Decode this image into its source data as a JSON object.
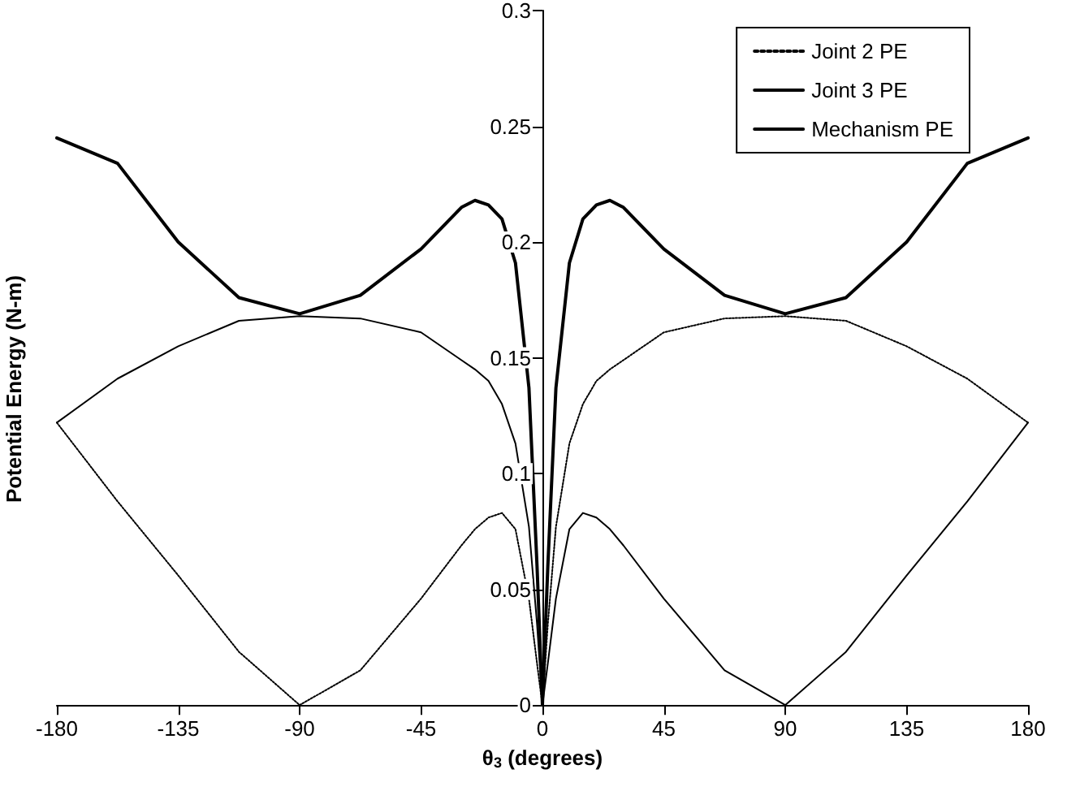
{
  "chart_data": {
    "type": "line",
    "xlabel": "θ$_{3}$ (degrees)",
    "ylabel": "Potential Energy (N-m)",
    "xlim": [
      -180,
      180
    ],
    "xticks": [
      -180,
      -135,
      -90,
      -45,
      0,
      45,
      90,
      135,
      180
    ],
    "ylim": [
      0,
      0.3
    ],
    "yticks": [
      0,
      0.05,
      0.1,
      0.15,
      0.2,
      0.25,
      0.3
    ],
    "grid": false,
    "legend": "top right",
    "marker": "none",
    "series": [
      {
        "name": "Joint 2 PE",
        "color": "#000000",
        "line_style": "dotted",
        "x": [
          -180,
          -157.5,
          -135,
          -112.5,
          -90,
          -67.5,
          -45,
          -30,
          -25,
          -20,
          -15,
          -10,
          -5,
          -2,
          0,
          2,
          5,
          10,
          15,
          20,
          25,
          30,
          45,
          67.5,
          90,
          112.5,
          135,
          157.5,
          180
        ],
        "values": [
          0.122,
          0.088,
          0.056,
          0.023,
          0,
          0.015,
          0.046,
          0.069,
          0.076,
          0.081,
          0.083,
          0.076,
          0.046,
          0.018,
          0,
          0.035,
          0.077,
          0.113,
          0.13,
          0.14,
          0.145,
          0.149,
          0.161,
          0.167,
          0.168,
          0.166,
          0.155,
          0.141,
          0.122
        ]
      },
      {
        "name": "Joint 3 PE",
        "color": "#000000",
        "line_style": "solid",
        "x": [
          -180,
          -157.5,
          -135,
          -112.5,
          -90,
          -67.5,
          -45,
          -30,
          -25,
          -20,
          -15,
          -10,
          -5,
          -2,
          0,
          2,
          5,
          10,
          15,
          20,
          25,
          30,
          45,
          67.5,
          90,
          112.5,
          135,
          157.5,
          180
        ],
        "values": [
          0.122,
          0.141,
          0.155,
          0.166,
          0.168,
          0.167,
          0.161,
          0.149,
          0.145,
          0.14,
          0.13,
          0.113,
          0.077,
          0.035,
          0,
          0.018,
          0.046,
          0.076,
          0.083,
          0.081,
          0.076,
          0.069,
          0.046,
          0.015,
          0,
          0.023,
          0.056,
          0.088,
          0.122
        ]
      },
      {
        "name": "Mechanism PE",
        "color": "#000000",
        "line_style": "solid",
        "x": [
          -180,
          -157.5,
          -135,
          -112.5,
          -90,
          -67.5,
          -45,
          -30,
          -25,
          -20,
          -15,
          -10,
          -5,
          -2,
          0,
          2,
          5,
          10,
          15,
          20,
          25,
          30,
          45,
          67.5,
          90,
          112.5,
          135,
          157.5,
          180
        ],
        "values": [
          0.245,
          0.234,
          0.2,
          0.176,
          0.169,
          0.177,
          0.197,
          0.215,
          0.218,
          0.216,
          0.21,
          0.191,
          0.137,
          0.06,
          0,
          0.06,
          0.137,
          0.191,
          0.21,
          0.216,
          0.218,
          0.215,
          0.197,
          0.177,
          0.169,
          0.176,
          0.2,
          0.234,
          0.245
        ]
      }
    ]
  }
}
